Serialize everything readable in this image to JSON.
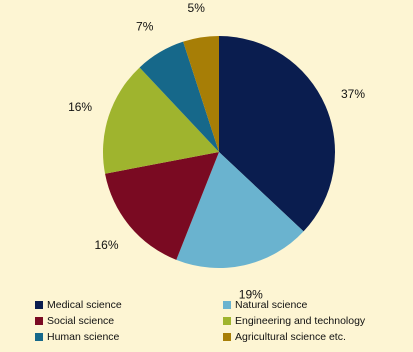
{
  "chart_data": {
    "type": "pie",
    "title": "",
    "slices": [
      {
        "name": "Medical science",
        "value": 37,
        "label": "37%",
        "color": "#0a1d4f"
      },
      {
        "name": "Natural science",
        "value": 19,
        "label": "19%",
        "color": "#6ab3cf"
      },
      {
        "name": "Social science",
        "value": 16,
        "label": "16%",
        "color": "#7a0a22"
      },
      {
        "name": "Engineering and technology",
        "value": 16,
        "label": "16%",
        "color": "#9fb42e"
      },
      {
        "name": "Human science",
        "value": 7,
        "label": "7%",
        "color": "#16688a"
      },
      {
        "name": "Agricultural science etc.",
        "value": 5,
        "label": "5%",
        "color": "#a77e06"
      }
    ],
    "legend_position": "bottom"
  },
  "background_color": "#fdf5d3"
}
